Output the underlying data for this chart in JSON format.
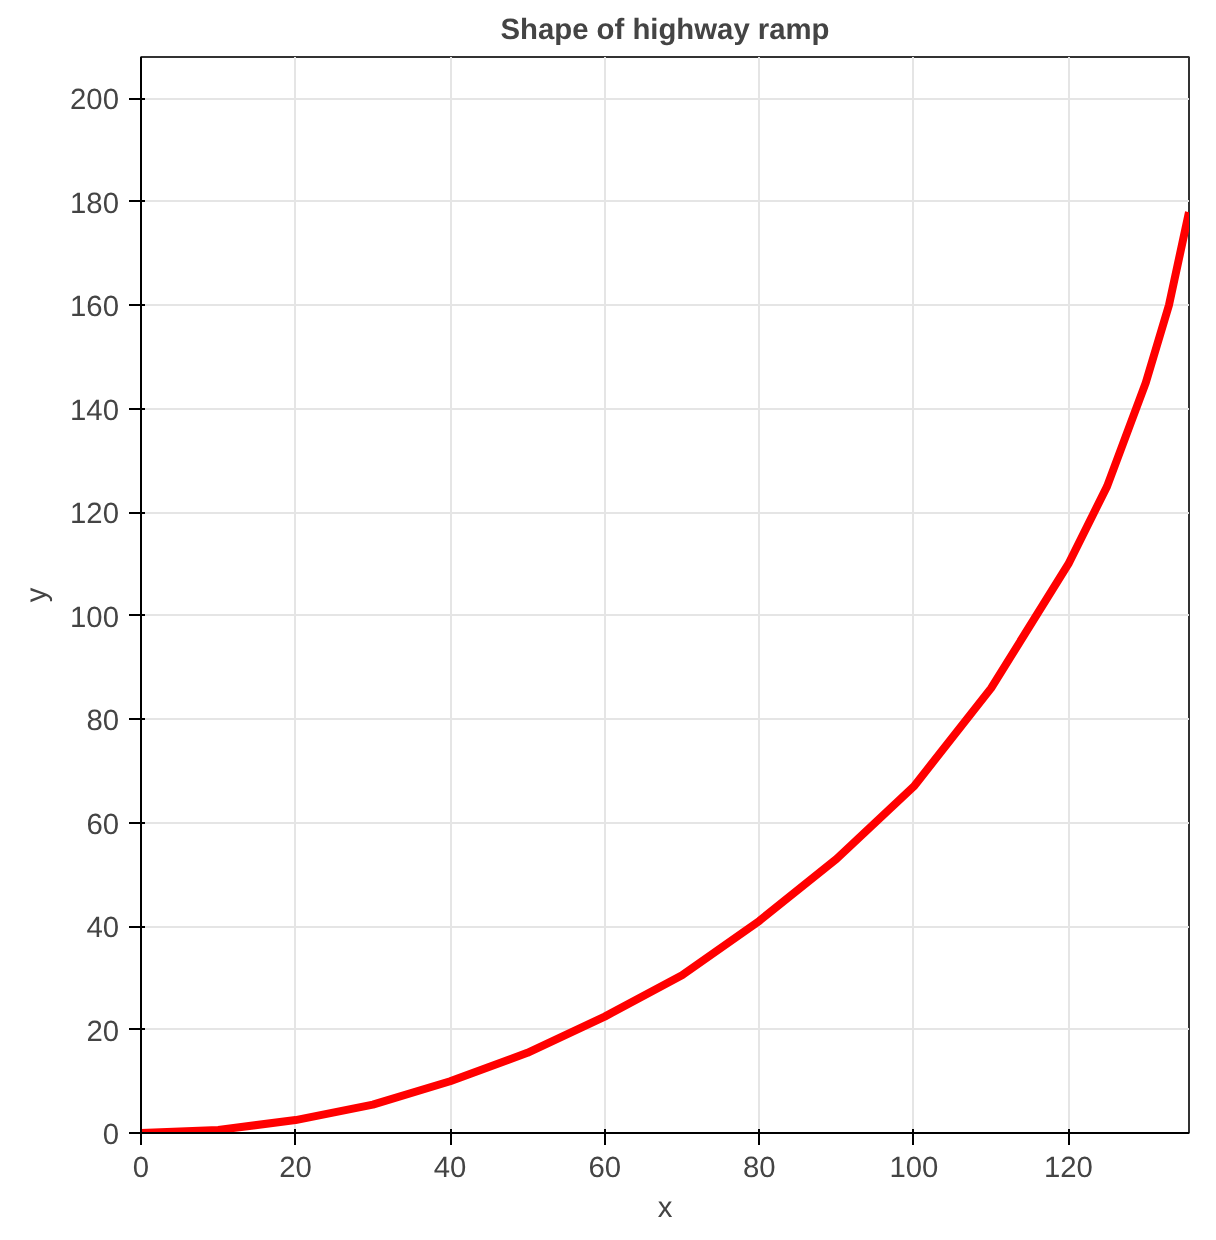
{
  "chart_data": {
    "type": "line",
    "title": "Shape of highway ramp",
    "xlabel": "x",
    "ylabel": "y",
    "x": [
      0,
      10,
      20,
      30,
      40,
      50,
      60,
      70,
      80,
      90,
      100,
      110,
      120,
      125,
      130,
      133,
      135.6
    ],
    "series": [
      {
        "color": "#ff0000",
        "values": [
          0,
          0.6,
          2.5,
          5.5,
          10,
          15.5,
          22.5,
          30.5,
          41,
          53,
          67,
          86,
          110,
          125,
          145,
          160,
          178
        ]
      }
    ],
    "xlim": [
      0,
      135.6
    ],
    "ylim": [
      0,
      208
    ],
    "xticks": [
      0,
      20,
      40,
      60,
      80,
      100,
      120
    ],
    "yticks": [
      0,
      20,
      40,
      60,
      80,
      100,
      120,
      140,
      160,
      180,
      200
    ],
    "grid": true,
    "line_style": "solid",
    "marker": "none"
  }
}
